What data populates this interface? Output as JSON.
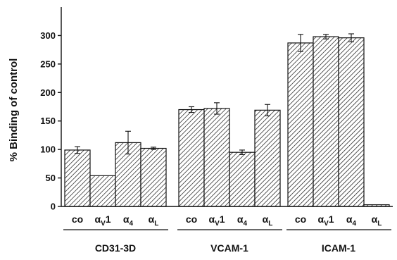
{
  "chart_data": {
    "type": "bar",
    "ylabel": "% Binding of control",
    "ylim": [
      0,
      350
    ],
    "yticks": [
      0,
      50,
      100,
      150,
      200,
      250,
      300
    ],
    "grid": false,
    "bar_labels": [
      {
        "base": "co",
        "sub": "",
        "tail": ""
      },
      {
        "base": "α",
        "sub": "V",
        "tail": "1"
      },
      {
        "base": "α",
        "sub": "4",
        "tail": ""
      },
      {
        "base": "α",
        "sub": "L",
        "tail": ""
      }
    ],
    "groups": [
      {
        "name": "CD31-3D",
        "values": [
          99,
          54,
          112,
          102
        ],
        "errors": [
          6,
          null,
          20,
          2
        ]
      },
      {
        "name": "VCAM-1",
        "values": [
          170,
          172,
          95,
          169
        ],
        "errors": [
          5,
          10,
          4,
          10
        ]
      },
      {
        "name": "ICAM-1",
        "values": [
          287,
          298,
          296,
          3
        ],
        "errors": [
          15,
          4,
          7,
          null
        ]
      }
    ],
    "colors": {
      "ink": "#111111",
      "background": "#ffffff"
    }
  }
}
